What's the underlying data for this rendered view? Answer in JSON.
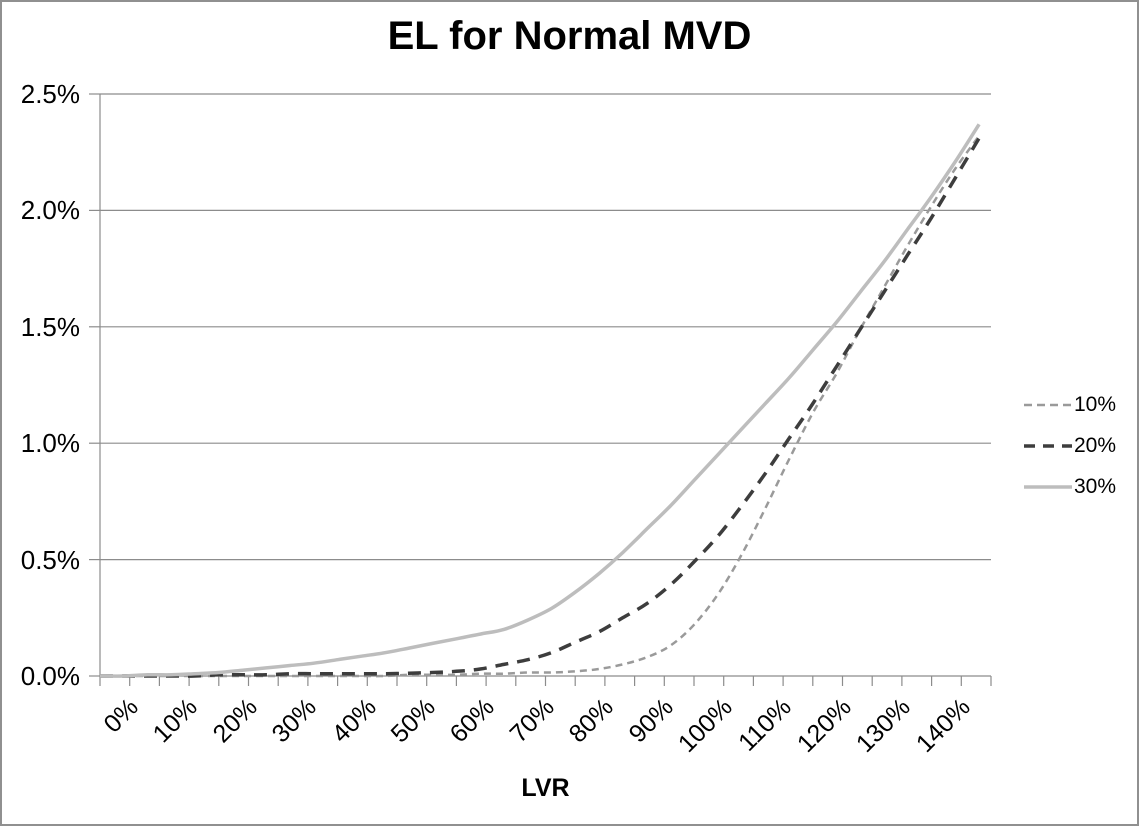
{
  "page": {
    "border_color": "#909090",
    "background_color": "#ffffff",
    "text_color": "#000000"
  },
  "chart_data": {
    "type": "line",
    "title": "EL for Normal MVD",
    "xlabel": "LVR",
    "ylabel": "",
    "grid": "horizontal",
    "legend_position": "right",
    "axis_color": "#8c8c8c",
    "gridline_color": "#8c8c8c",
    "xlim": [
      0,
      150
    ],
    "ylim": [
      0,
      2.5
    ],
    "x_major_tick_step": 5,
    "x_label_step": 10,
    "y_tick_values": [
      0,
      0.5,
      1.0,
      1.5,
      2.0,
      2.5
    ],
    "y_tick_labels": [
      "0.0%",
      "0.5%",
      "1.0%",
      "1.5%",
      "2.0%",
      "2.5%"
    ],
    "x_tick_label_values": [
      0,
      10,
      20,
      30,
      40,
      50,
      60,
      70,
      80,
      90,
      100,
      110,
      120,
      130,
      140
    ],
    "x_tick_labels": [
      "0%",
      "10%",
      "20%",
      "30%",
      "40%",
      "50%",
      "60%",
      "70%",
      "80%",
      "90%",
      "100%",
      "110%",
      "120%",
      "130%",
      "140%"
    ],
    "x": [
      0,
      4,
      8,
      12,
      16,
      20,
      24,
      28,
      32,
      36,
      40,
      44,
      48,
      52,
      56,
      60,
      64,
      68,
      72,
      76,
      80,
      84,
      88,
      92,
      96,
      100,
      104,
      108,
      112,
      116,
      120,
      124,
      128,
      132,
      136,
      140,
      144,
      148
    ],
    "series": [
      {
        "name": "10%",
        "color": "#9a9a9a",
        "line_style": "dash-small",
        "line_width": 2.5,
        "values": [
          0,
          0,
          0,
          0,
          0,
          0,
          0,
          0,
          0,
          0,
          0,
          0,
          0,
          0.005,
          0.005,
          0.005,
          0.01,
          0.01,
          0.015,
          0.015,
          0.02,
          0.03,
          0.05,
          0.08,
          0.13,
          0.22,
          0.35,
          0.52,
          0.72,
          0.93,
          1.13,
          1.3,
          1.49,
          1.67,
          1.85,
          2.02,
          2.18,
          2.32
        ]
      },
      {
        "name": "20%",
        "color": "#3d3d3d",
        "line_style": "dash-long",
        "line_width": 3.5,
        "values": [
          0,
          0,
          0,
          0,
          0,
          0.005,
          0.005,
          0.005,
          0.01,
          0.01,
          0.01,
          0.01,
          0.01,
          0.012,
          0.015,
          0.02,
          0.03,
          0.05,
          0.07,
          0.1,
          0.145,
          0.19,
          0.25,
          0.31,
          0.39,
          0.49,
          0.6,
          0.73,
          0.87,
          1.02,
          1.17,
          1.33,
          1.49,
          1.65,
          1.81,
          1.97,
          2.14,
          2.31
        ]
      },
      {
        "name": "30%",
        "color": "#bdbdbd",
        "line_style": "solid",
        "line_width": 3.5,
        "values": [
          0,
          0,
          0.005,
          0.005,
          0.01,
          0.015,
          0.025,
          0.035,
          0.045,
          0.055,
          0.07,
          0.085,
          0.1,
          0.12,
          0.14,
          0.16,
          0.18,
          0.2,
          0.24,
          0.29,
          0.36,
          0.44,
          0.53,
          0.63,
          0.73,
          0.84,
          0.95,
          1.06,
          1.17,
          1.28,
          1.4,
          1.52,
          1.65,
          1.78,
          1.92,
          2.06,
          2.21,
          2.37
        ]
      }
    ]
  }
}
